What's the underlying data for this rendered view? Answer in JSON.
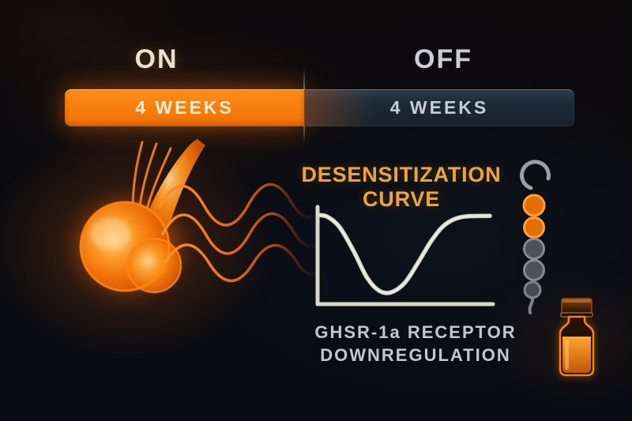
{
  "timeline": {
    "on_label": "ON",
    "off_label": "OFF",
    "on_duration": "4 WEEKS",
    "off_duration": "4 WEEKS"
  },
  "chart": {
    "title_line1": "DESENSITIZATION",
    "title_line2": "CURVE",
    "caption_line1": "GHSR-1a RECEPTOR",
    "caption_line2": "DOWNREGULATION"
  },
  "chart_data": {
    "type": "line",
    "title": "DESENSITIZATION CURVE",
    "xlabel": "",
    "ylabel": "",
    "x": [
      0,
      0.05,
      0.12,
      0.2,
      0.28,
      0.35,
      0.42,
      0.5,
      0.58,
      0.66,
      0.74,
      0.84,
      1
    ],
    "values": [
      93,
      91,
      80,
      55,
      26,
      12,
      10,
      20,
      42,
      66,
      83,
      91,
      92
    ],
    "ylim": [
      0,
      100
    ],
    "xlim": [
      0,
      1
    ],
    "grid": false,
    "legend": "none"
  },
  "icons": {
    "gland": "pituitary-gland-illustration",
    "waves": "signal-waves",
    "chain": "receptor-dot-chain",
    "vial": "peptide-vial"
  },
  "colors": {
    "accent_orange": "#f57a0c",
    "off_slate": "#1d2a38",
    "title_amber": "#eaa53e",
    "curve_gray": "#dcdacf",
    "on_text": "#efe2cd",
    "off_text": "#c9ced6",
    "caption_gray": "#c3c8d0",
    "background": "#0a0b10"
  }
}
